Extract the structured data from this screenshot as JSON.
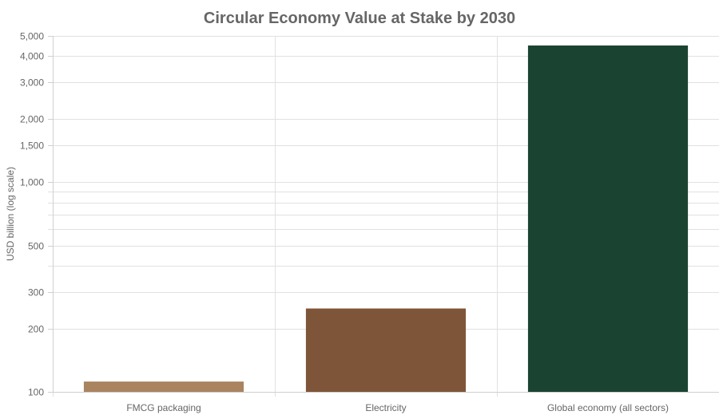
{
  "chart_data": {
    "type": "bar",
    "title": "Circular Economy Value at Stake by 2030",
    "xlabel": "",
    "ylabel": "USD billion (log scale)",
    "yscale": "log",
    "ylim": [
      100,
      5000
    ],
    "grid": true,
    "categories": [
      "FMCG packaging",
      "Electricity",
      "Global economy (all sectors)"
    ],
    "values": [
      112,
      250,
      4500
    ],
    "colors": [
      "#A9845F",
      "#7F5539",
      "#1B4332"
    ],
    "y_tick_values": [
      100,
      200,
      300,
      500,
      1000,
      1500,
      2000,
      3000,
      4000,
      5000
    ],
    "y_tick_labels": [
      "100",
      "200",
      "300",
      "500",
      "1,000",
      "1,500",
      "2,000",
      "3,000",
      "4,000",
      "5,000"
    ],
    "y_minor_grid": [
      400,
      600,
      700,
      800,
      900
    ]
  }
}
